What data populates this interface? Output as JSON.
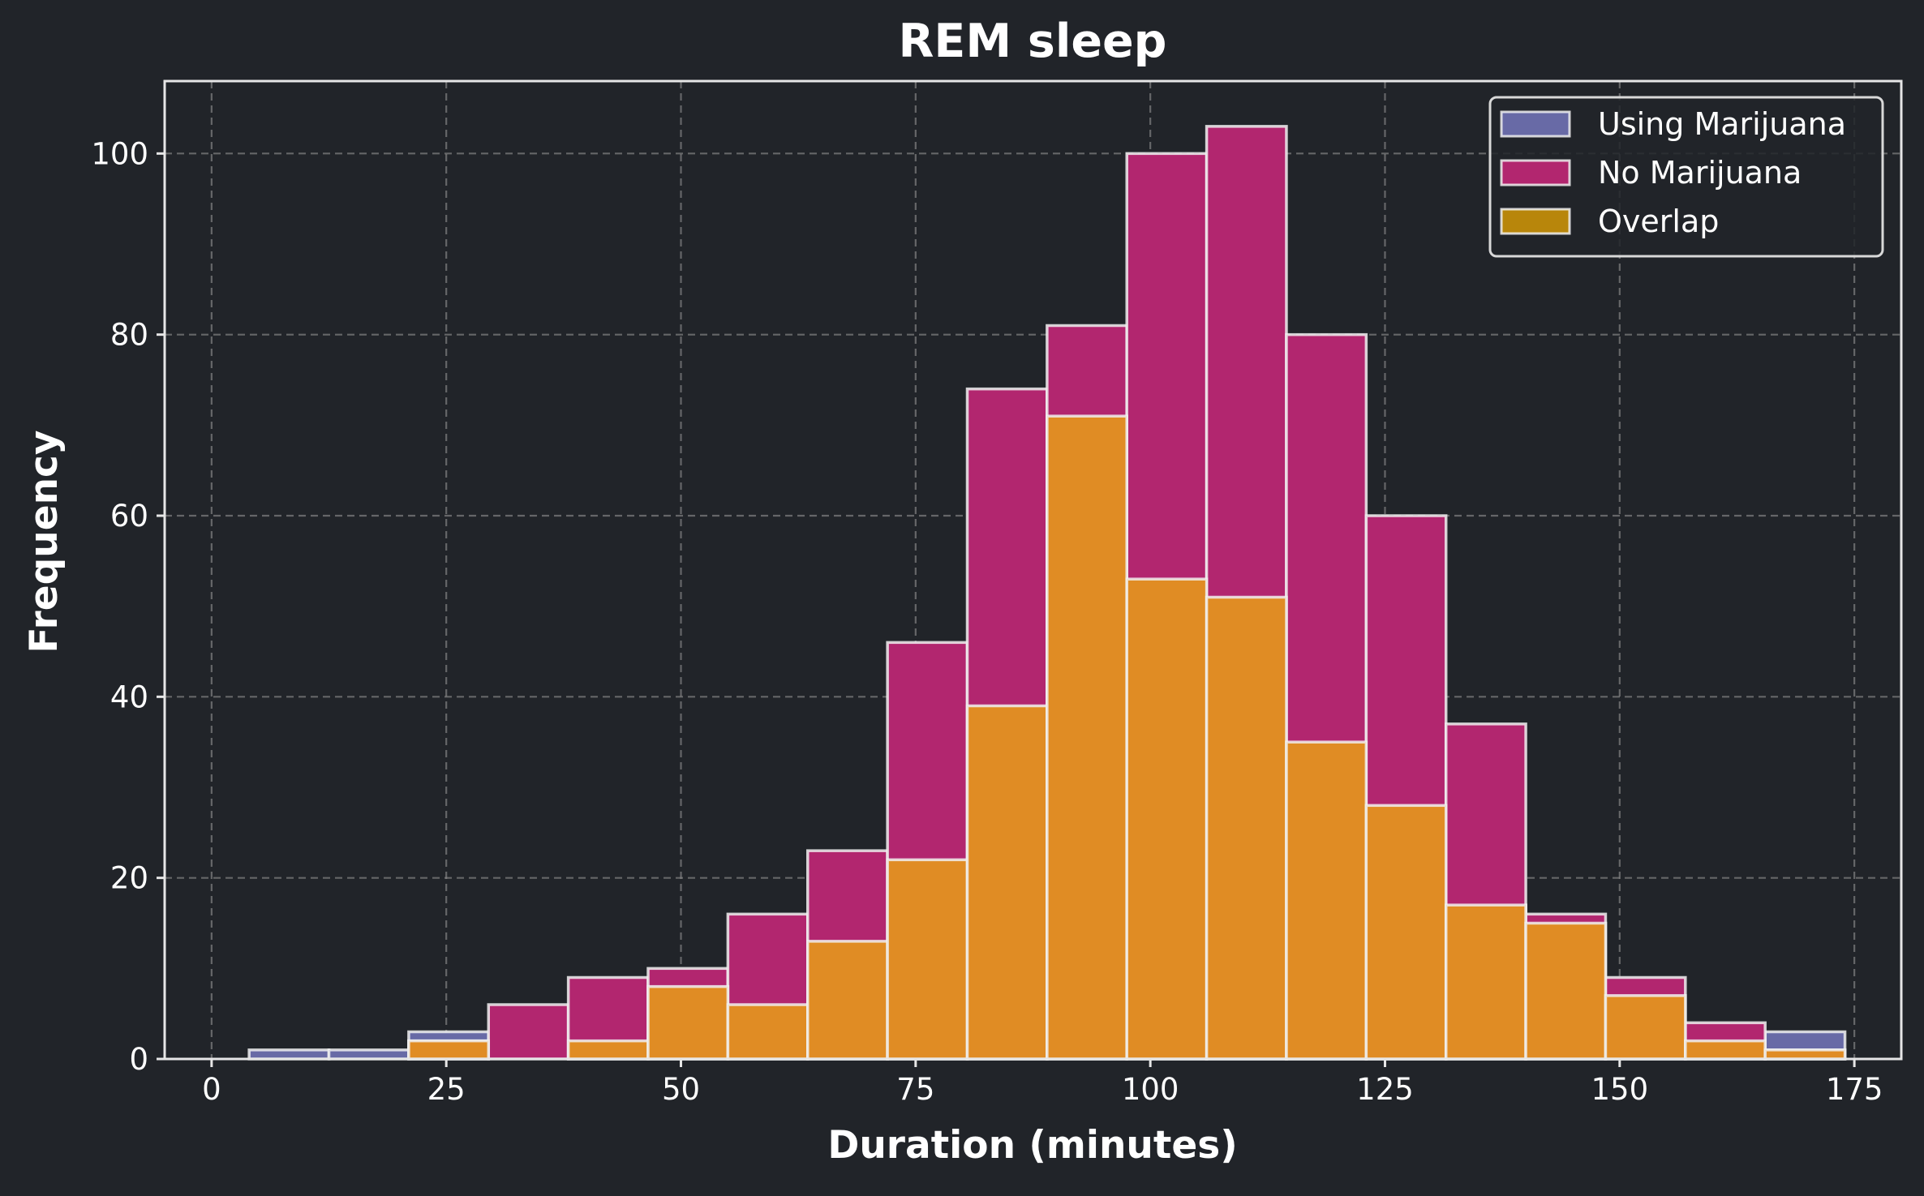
{
  "chart_data": {
    "type": "bar",
    "subtype": "overlaid-histogram",
    "title": "REM sleep",
    "xlabel": "Duration (minutes)",
    "ylabel": "Frequency",
    "xlim": [
      -5,
      180
    ],
    "ylim": [
      0,
      108
    ],
    "xticks": [
      0,
      25,
      50,
      75,
      100,
      125,
      150,
      175
    ],
    "yticks": [
      0,
      20,
      40,
      60,
      80,
      100
    ],
    "grid": true,
    "legend_position": "top-right",
    "bin_edges": [
      4,
      12.5,
      21,
      29.5,
      38,
      46.5,
      55,
      63.5,
      72,
      80.5,
      89,
      97.5,
      106,
      114.5,
      123,
      131.5,
      140,
      148.5,
      157,
      165.5,
      174
    ],
    "series": [
      {
        "name": "Using Marijuana",
        "color": "#686aa6",
        "values": [
          1,
          1,
          3,
          0,
          2,
          8,
          6,
          13,
          22,
          39,
          71,
          53,
          51,
          35,
          28,
          17,
          15,
          7,
          2,
          3
        ]
      },
      {
        "name": "No Marijuana",
        "color": "#b2266f",
        "values": [
          0,
          0,
          2,
          6,
          9,
          10,
          16,
          23,
          46,
          74,
          81,
          100,
          103,
          80,
          60,
          37,
          16,
          9,
          4,
          1
        ]
      },
      {
        "name": "Overlap",
        "color": "#e08c24",
        "legend_color": "#b8860b",
        "values": [
          0,
          0,
          2,
          0,
          2,
          8,
          6,
          13,
          22,
          39,
          71,
          53,
          51,
          35,
          28,
          17,
          15,
          7,
          2,
          1
        ]
      }
    ]
  }
}
